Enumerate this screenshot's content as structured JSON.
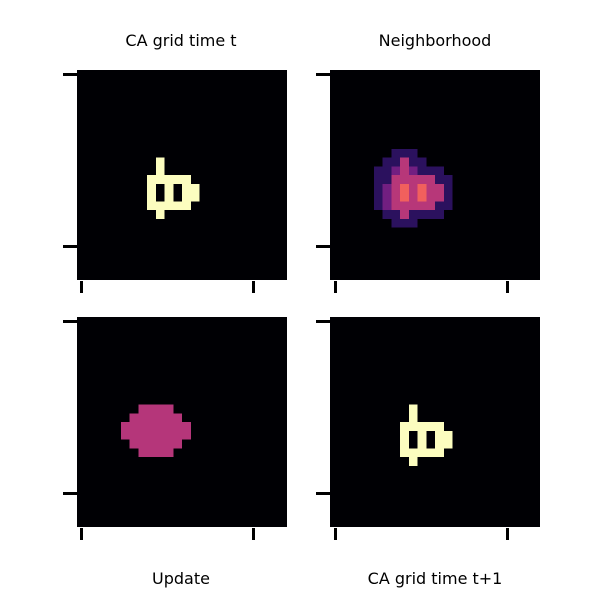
{
  "panels": {
    "ca_t": {
      "title": "CA grid time t"
    },
    "neighborhood": {
      "title": "Neighborhood"
    },
    "update": {
      "title": "Update"
    },
    "ca_t1": {
      "title": "CA grid time t+1"
    }
  },
  "grid": {
    "size": 24,
    "pattern_cells": [
      [
        11,
        1
      ],
      [
        11,
        2
      ],
      [
        10,
        3
      ],
      [
        11,
        3
      ],
      [
        12,
        3
      ],
      [
        13,
        3
      ],
      [
        14,
        3
      ],
      [
        10,
        4
      ],
      [
        12,
        4
      ],
      [
        14,
        4
      ],
      [
        15,
        4
      ],
      [
        10,
        5
      ],
      [
        12,
        5
      ],
      [
        14,
        5
      ],
      [
        15,
        5
      ],
      [
        10,
        6
      ],
      [
        11,
        6
      ],
      [
        12,
        6
      ],
      [
        13,
        6
      ],
      [
        14,
        6
      ],
      [
        11,
        7
      ]
    ],
    "pattern_offset": [
      2,
      9
    ],
    "neighborhood_levels": {
      "outer": [
        [
          10,
          0
        ],
        [
          11,
          0
        ],
        [
          12,
          0
        ],
        [
          9,
          1
        ],
        [
          10,
          1
        ],
        [
          12,
          1
        ],
        [
          13,
          1
        ],
        [
          8,
          2
        ],
        [
          9,
          2
        ],
        [
          13,
          2
        ],
        [
          14,
          2
        ],
        [
          15,
          2
        ],
        [
          8,
          3
        ],
        [
          9,
          3
        ],
        [
          15,
          3
        ],
        [
          16,
          3
        ],
        [
          8,
          4
        ],
        [
          16,
          4
        ],
        [
          8,
          5
        ],
        [
          16,
          5
        ],
        [
          8,
          6
        ],
        [
          15,
          6
        ],
        [
          16,
          6
        ],
        [
          9,
          7
        ],
        [
          10,
          7
        ],
        [
          12,
          7
        ],
        [
          13,
          7
        ],
        [
          14,
          7
        ],
        [
          15,
          7
        ],
        [
          10,
          8
        ],
        [
          11,
          8
        ],
        [
          12,
          8
        ]
      ],
      "inner": [
        [
          11,
          1
        ],
        [
          10,
          2
        ],
        [
          11,
          2
        ],
        [
          12,
          2
        ],
        [
          10,
          3
        ],
        [
          11,
          3
        ],
        [
          12,
          3
        ],
        [
          13,
          3
        ],
        [
          14,
          3
        ],
        [
          9,
          4
        ],
        [
          10,
          4
        ],
        [
          12,
          4
        ],
        [
          13,
          4
        ],
        [
          14,
          4
        ],
        [
          15,
          4
        ],
        [
          9,
          5
        ],
        [
          10,
          5
        ],
        [
          11,
          5
        ],
        [
          12,
          5
        ],
        [
          13,
          5
        ],
        [
          14,
          5
        ],
        [
          15,
          5
        ],
        [
          9,
          6
        ],
        [
          10,
          6
        ],
        [
          11,
          6
        ],
        [
          12,
          6
        ],
        [
          13,
          6
        ],
        [
          14,
          6
        ],
        [
          11,
          7
        ]
      ],
      "hot": [
        [
          11,
          4
        ],
        [
          13,
          4
        ],
        [
          11,
          5
        ],
        [
          13,
          5
        ]
      ]
    },
    "neighborhood_offset": [
      3,
      9
    ],
    "update_offset": [
      3,
      9
    ],
    "update_cells": [
      [
        10,
        1
      ],
      [
        11,
        1
      ],
      [
        12,
        1
      ],
      [
        13,
        1
      ],
      [
        9,
        2
      ],
      [
        10,
        2
      ],
      [
        11,
        2
      ],
      [
        12,
        2
      ],
      [
        13,
        2
      ],
      [
        14,
        2
      ],
      [
        8,
        3
      ],
      [
        9,
        3
      ],
      [
        10,
        3
      ],
      [
        11,
        3
      ],
      [
        12,
        3
      ],
      [
        13,
        3
      ],
      [
        14,
        3
      ],
      [
        15,
        3
      ],
      [
        8,
        4
      ],
      [
        9,
        4
      ],
      [
        10,
        4
      ],
      [
        11,
        4
      ],
      [
        12,
        4
      ],
      [
        13,
        4
      ],
      [
        14,
        4
      ],
      [
        15,
        4
      ],
      [
        9,
        5
      ],
      [
        10,
        5
      ],
      [
        11,
        5
      ],
      [
        12,
        5
      ],
      [
        13,
        5
      ],
      [
        14,
        5
      ],
      [
        10,
        6
      ],
      [
        11,
        6
      ],
      [
        12,
        6
      ],
      [
        13,
        6
      ]
    ],
    "colors": {
      "background": "#000004",
      "live": "#fcfdbf",
      "outer": "#2b115e",
      "inner": "#721f81",
      "mid": "#b73779",
      "hot": "#f1605d",
      "update": "#b5367a"
    }
  }
}
